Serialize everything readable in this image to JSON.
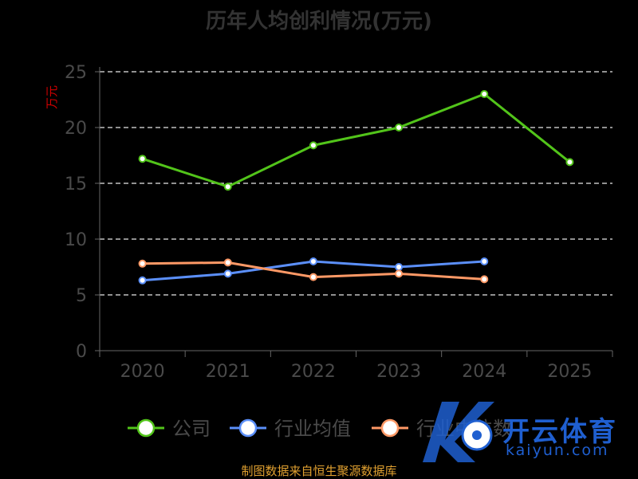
{
  "title": "历年人均创利情况(万元)",
  "source": "制图数据来自恒生聚源数据库",
  "watermark": {
    "cn": "开云体育",
    "en": "kaiyun.com"
  },
  "chart_data": {
    "type": "line",
    "title": "历年人均创利情况(万元)",
    "ylabel": "万元",
    "xlabel": "",
    "categories": [
      "2020",
      "2021",
      "2022",
      "2023",
      "2024",
      "2025"
    ],
    "ylim": [
      0,
      25
    ],
    "yticks": [
      0,
      5,
      10,
      15,
      20,
      25
    ],
    "grid": true,
    "legend_position": "bottom",
    "series": [
      {
        "name": "公司",
        "color": "#52c41a",
        "values": [
          17.2,
          14.7,
          18.4,
          20.0,
          23.0,
          16.9
        ]
      },
      {
        "name": "行业均值",
        "color": "#5b8ff9",
        "values": [
          6.3,
          6.9,
          8.0,
          7.5,
          8.0,
          null
        ]
      },
      {
        "name": "行业中位数",
        "color": "#ff9966",
        "values": [
          7.8,
          7.9,
          6.6,
          6.9,
          6.4,
          null
        ]
      }
    ]
  }
}
